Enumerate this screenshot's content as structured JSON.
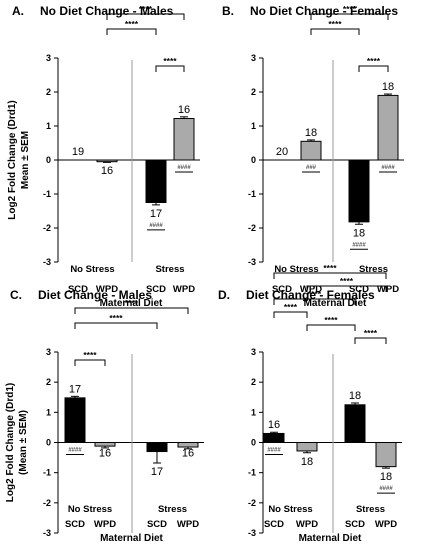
{
  "y_axis_label": "Log2 Fold Change (Drd1)",
  "panels": [
    {
      "letter": "A.",
      "title": "No Diet Change - Males",
      "ylabel_line2": "Mean ± SEM",
      "xlabel": "Maternal Diet",
      "groups": [
        "No Stress",
        "Stress"
      ],
      "categories": [
        "SCD",
        "WPD",
        "SCD",
        "WPD"
      ],
      "ytick_labels": [
        "-3",
        "-2",
        "-1",
        "0",
        "1",
        "2",
        "3"
      ],
      "chart_data": {
        "type": "bar",
        "title": "No Diet Change - Males",
        "xlabel": "Maternal Diet",
        "ylabel": "Log2 Fold Change (Drd1) Mean ± SEM",
        "ylim": [
          -3,
          3
        ],
        "categories": [
          "No Stress SCD",
          "No Stress WPD",
          "Stress SCD",
          "Stress WPD"
        ],
        "values": [
          0,
          -0.05,
          -1.25,
          1.22
        ],
        "errors": [
          0,
          0.02,
          0.07,
          0.05
        ],
        "fills": [
          "#ffffff",
          "#aaaaaa",
          "#000000",
          "#aaaaaa"
        ],
        "n_labels": [
          "19",
          "16",
          "17",
          "16"
        ],
        "sig_marks": [
          "",
          "",
          "####",
          "####"
        ],
        "comparisons": [
          {
            "from": 1,
            "to": 3,
            "label": "****"
          },
          {
            "from": 1,
            "to": 2,
            "label": "****"
          },
          {
            "from": 2,
            "to": 3,
            "label": "****"
          }
        ]
      }
    },
    {
      "letter": "B.",
      "title": "No Diet Change - Females",
      "ylabel_line2": "",
      "xlabel": "Maternal Diet",
      "groups": [
        "No Stress",
        "Stress"
      ],
      "categories": [
        "SCD",
        "WPD",
        "SCD",
        "WPD"
      ],
      "ytick_labels": [
        "-3",
        "-2",
        "-1",
        "0",
        "1",
        "2",
        "3"
      ],
      "chart_data": {
        "type": "bar",
        "title": "No Diet Change - Females",
        "xlabel": "Maternal Diet",
        "ylabel": "",
        "ylim": [
          -3,
          3
        ],
        "categories": [
          "No Stress SCD",
          "No Stress WPD",
          "Stress SCD",
          "Stress WPD"
        ],
        "values": [
          0,
          0.55,
          -1.82,
          1.9
        ],
        "errors": [
          0,
          0.04,
          0.07,
          0.04
        ],
        "fills": [
          "#ffffff",
          "#aaaaaa",
          "#000000",
          "#aaaaaa"
        ],
        "n_labels": [
          "20",
          "18",
          "18",
          "18"
        ],
        "sig_marks": [
          "",
          "###",
          "####",
          "####"
        ],
        "comparisons": [
          {
            "from": 1,
            "to": 3,
            "label": "****"
          },
          {
            "from": 1,
            "to": 2,
            "label": "****"
          },
          {
            "from": 2,
            "to": 3,
            "label": "****"
          }
        ]
      }
    },
    {
      "letter": "C.",
      "title": "Diet Change - Males",
      "ylabel_line2": "(Mean ± SEM)",
      "xlabel": "Maternal Diet",
      "groups": [
        "No Stress",
        "Stress"
      ],
      "categories": [
        "SCD",
        "WPD",
        "SCD",
        "WPD"
      ],
      "ytick_labels": [
        "-3",
        "-2",
        "-1",
        "0",
        "1",
        "2",
        "3"
      ],
      "chart_data": {
        "type": "bar",
        "title": "Diet Change - Males",
        "xlabel": "Maternal Diet",
        "ylabel": "Log2 Fold Change (Drd1) (Mean ± SEM)",
        "ylim": [
          -3,
          3
        ],
        "categories": [
          "No Stress SCD",
          "No Stress WPD",
          "Stress SCD",
          "Stress WPD"
        ],
        "values": [
          1.48,
          -0.12,
          -0.3,
          -0.15
        ],
        "errors": [
          0.05,
          0.06,
          0.38,
          0.06
        ],
        "fills": [
          "#000000",
          "#aaaaaa",
          "#000000",
          "#aaaaaa"
        ],
        "n_labels": [
          "17",
          "16",
          "17",
          "16"
        ],
        "sig_marks": [
          "####",
          "",
          "",
          ""
        ],
        "comparisons": [
          {
            "from": 0,
            "to": 3,
            "label": "****"
          },
          {
            "from": 0,
            "to": 2,
            "label": "****"
          },
          {
            "from": 0,
            "to": 1,
            "label": "****"
          }
        ]
      }
    },
    {
      "letter": "D.",
      "title": "Diet Change - Females",
      "ylabel_line2": "",
      "xlabel": "Maternal Diet",
      "groups": [
        "No Stress",
        "Stress"
      ],
      "categories": [
        "SCD",
        "WPD",
        "SCD",
        "WPD"
      ],
      "ytick_labels": [
        "-3",
        "-2",
        "-1",
        "0",
        "1",
        "2",
        "3"
      ],
      "chart_data": {
        "type": "bar",
        "title": "Diet Change - Females",
        "xlabel": "Maternal Diet",
        "ylabel": "",
        "ylim": [
          -3,
          3
        ],
        "categories": [
          "No Stress SCD",
          "No Stress WPD",
          "Stress SCD",
          "Stress WPD"
        ],
        "values": [
          0.3,
          -0.28,
          1.25,
          -0.8
        ],
        "errors": [
          0.04,
          0.06,
          0.06,
          0.05
        ],
        "fills": [
          "#000000",
          "#aaaaaa",
          "#000000",
          "#aaaaaa"
        ],
        "n_labels": [
          "16",
          "18",
          "18",
          "18"
        ],
        "sig_marks": [
          "####",
          "",
          "",
          "####"
        ],
        "comparisons": [
          {
            "from": 0,
            "to": 3,
            "label": "****"
          },
          {
            "from": 1,
            "to": 3,
            "label": "****"
          },
          {
            "from": 0,
            "to": 2,
            "label": "****"
          },
          {
            "from": 0,
            "to": 1,
            "label": "****"
          },
          {
            "from": 1,
            "to": 2,
            "label": "****"
          },
          {
            "from": 2,
            "to": 3,
            "label": "****"
          }
        ]
      }
    }
  ]
}
